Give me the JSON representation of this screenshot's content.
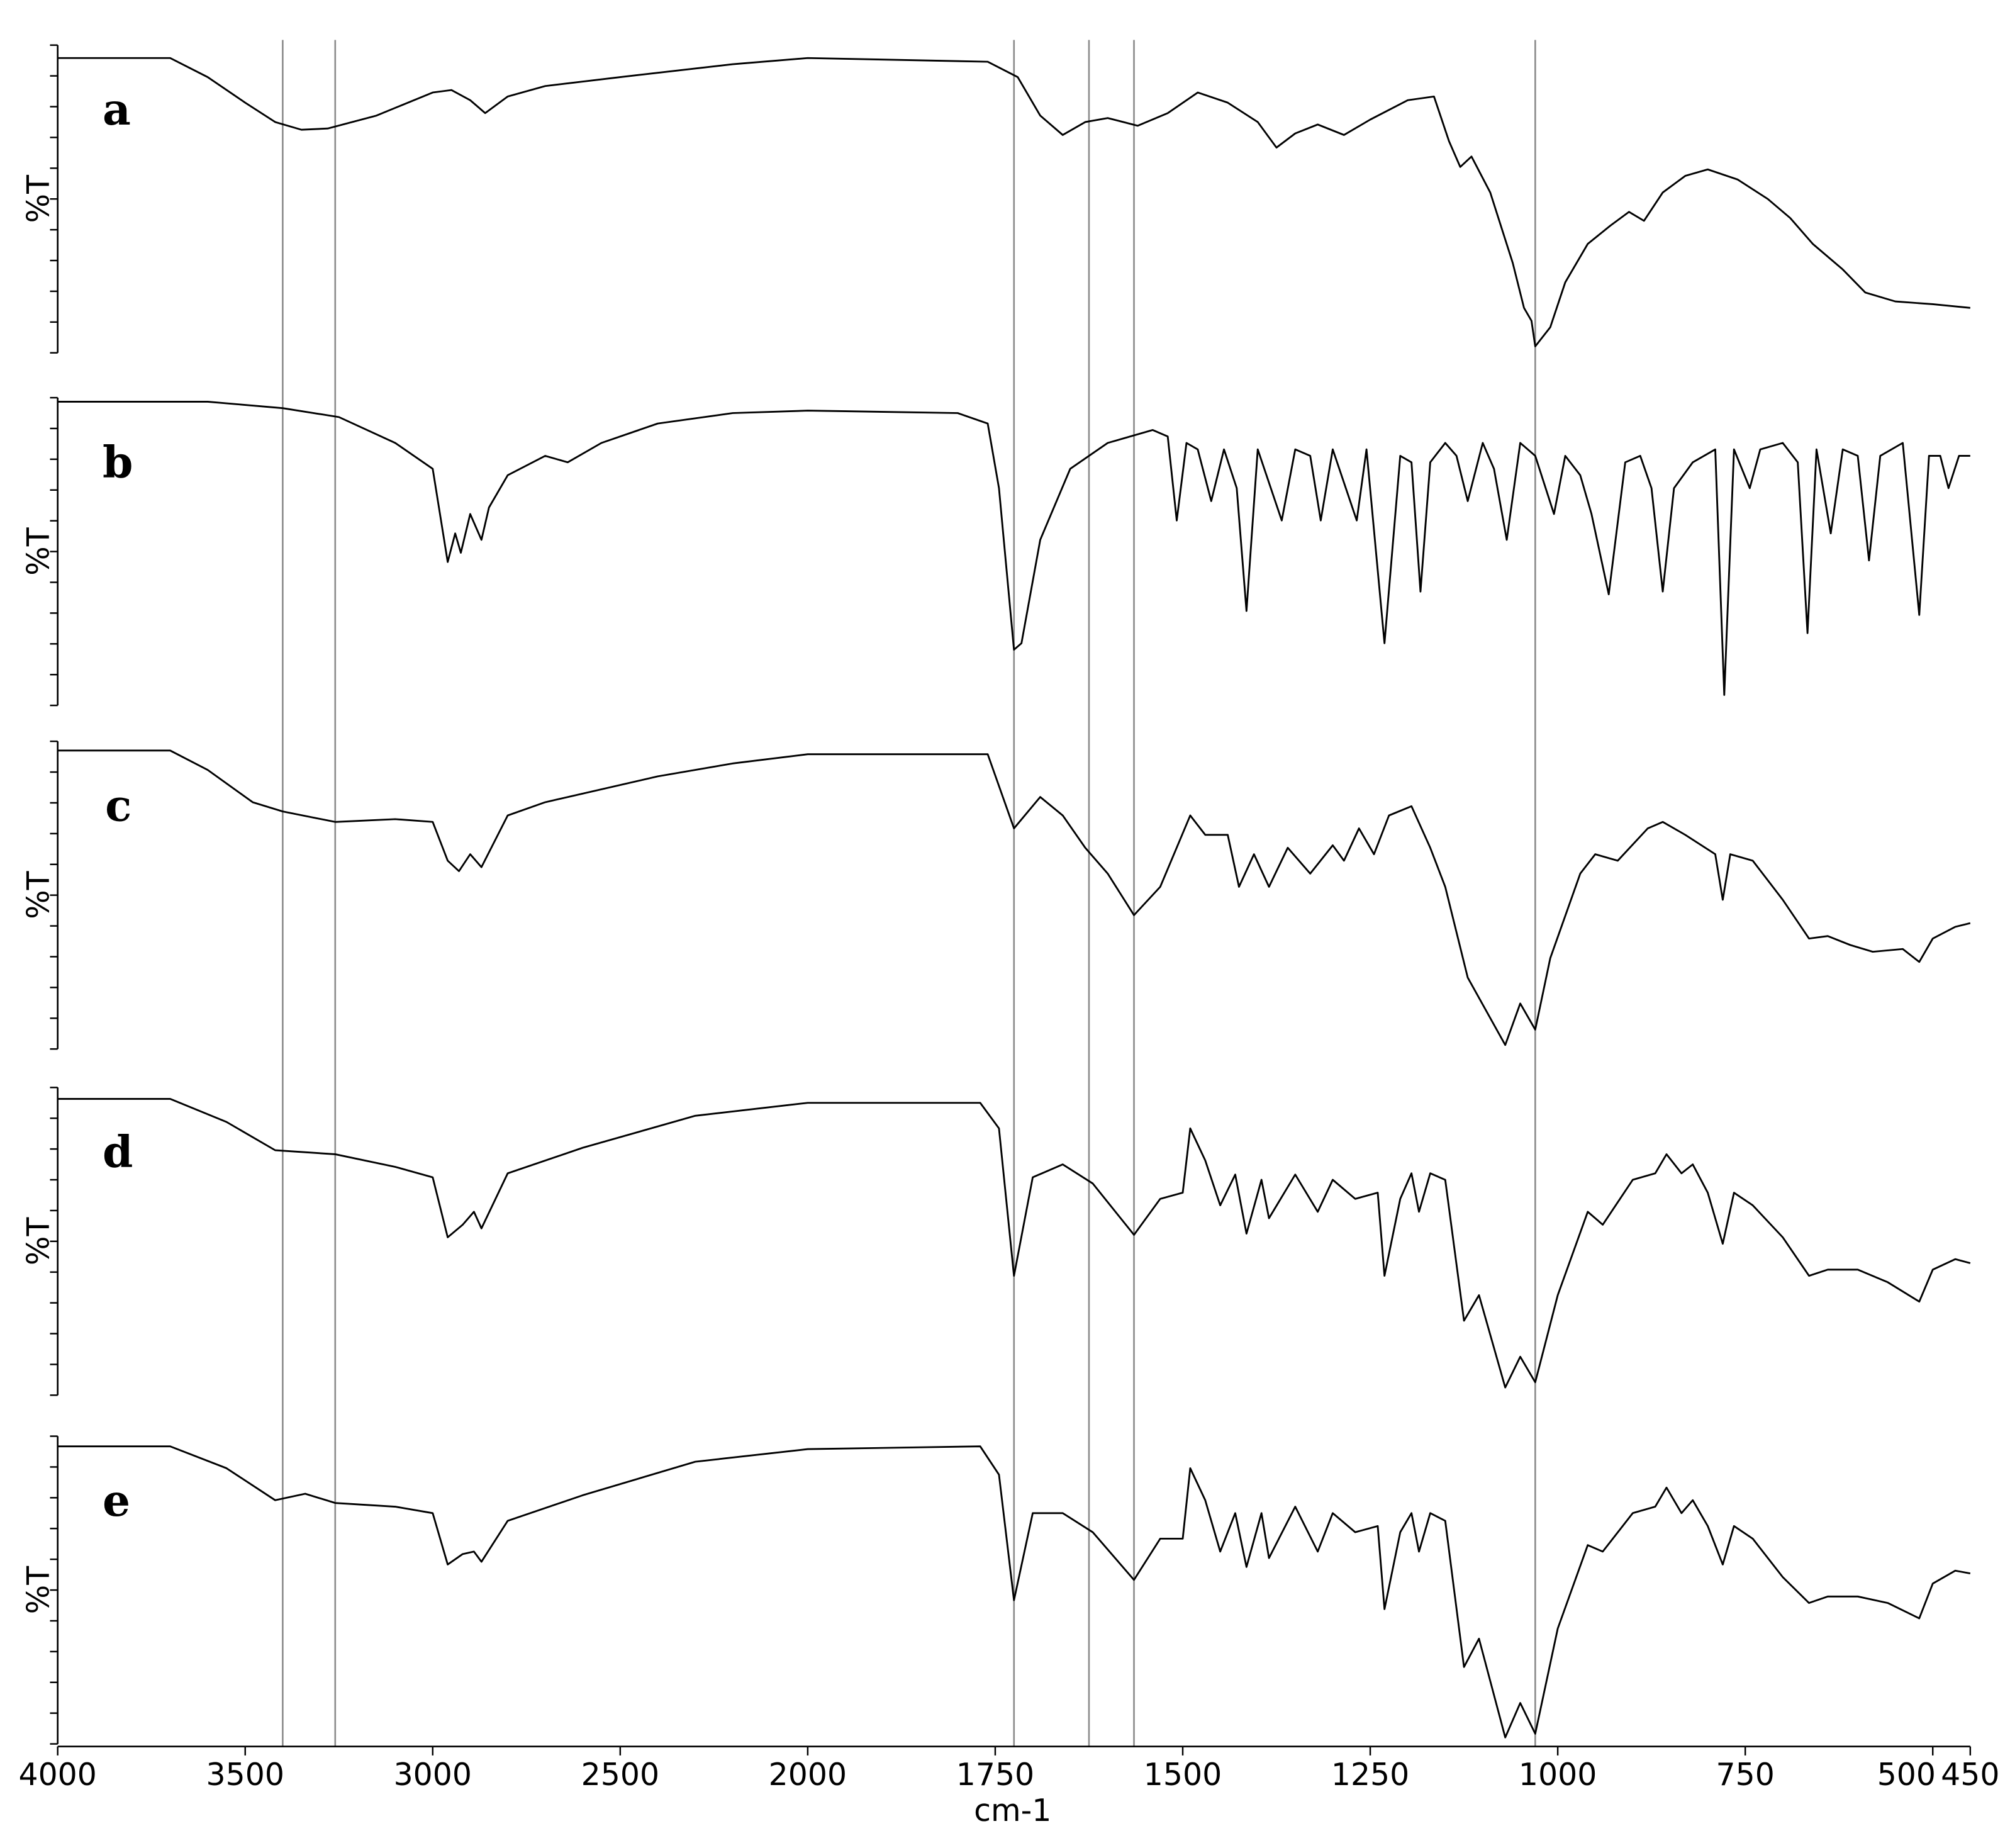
{
  "reference_lines": {
    "x": [
      3400,
      3260,
      1725,
      1625,
      1565,
      1030
    ],
    "color": "#8c8c8c"
  },
  "chart_data": [
    {
      "type": "line",
      "title": "a",
      "ylabel": "%T",
      "color": "#000000",
      "xlim": [
        4000,
        450
      ],
      "xscale": {
        "break": 2000,
        "ratio": 2
      },
      "ylim": [
        0,
        100
      ],
      "yticks": [
        0,
        10,
        20,
        30,
        40,
        50,
        60,
        70,
        80,
        90,
        100
      ],
      "x": [
        4000,
        3700,
        3600,
        3500,
        3420,
        3350,
        3280,
        3150,
        3000,
        2950,
        2900,
        2860,
        2800,
        2700,
        2500,
        2200,
        2000,
        1760,
        1720,
        1690,
        1660,
        1630,
        1600,
        1560,
        1520,
        1480,
        1440,
        1400,
        1375,
        1350,
        1320,
        1285,
        1250,
        1200,
        1165,
        1145,
        1130,
        1115,
        1090,
        1060,
        1045,
        1035,
        1030,
        1010,
        990,
        960,
        930,
        905,
        885,
        860,
        830,
        800,
        760,
        720,
        690,
        660,
        620,
        590,
        550,
        500,
        450
      ],
      "values": [
        95.8,
        95.8,
        89.6,
        81.3,
        75,
        72.5,
        72.9,
        77.1,
        84.6,
        85.4,
        82.1,
        77.9,
        83.3,
        86.7,
        89.6,
        93.8,
        95.8,
        94.6,
        89.6,
        77.1,
        70.8,
        75,
        76.3,
        73.8,
        77.9,
        84.6,
        81.3,
        75,
        66.7,
        71.3,
        74.2,
        70.8,
        75.8,
        82.1,
        83.3,
        68.8,
        60.4,
        63.8,
        52.1,
        29.2,
        14.6,
        10.4,
        2.1,
        8.3,
        22.9,
        35.4,
        41.3,
        45.8,
        42.9,
        52.1,
        57.5,
        59.6,
        56.3,
        50,
        43.8,
        35.4,
        27.1,
        19.6,
        16.7,
        15.8,
        14.6
      ]
    },
    {
      "type": "line",
      "title": "b",
      "ylabel": "%T",
      "color": "#000000",
      "xlim": [
        4000,
        450
      ],
      "xscale": {
        "break": 2000,
        "ratio": 2
      },
      "ylim": [
        0,
        100
      ],
      "yticks": [
        0,
        10,
        20,
        30,
        40,
        50,
        60,
        70,
        80,
        90,
        100
      ],
      "x": [
        4000,
        3600,
        3400,
        3250,
        3100,
        3000,
        2960,
        2940,
        2925,
        2900,
        2870,
        2850,
        2800,
        2700,
        2640,
        2550,
        2400,
        2200,
        2000,
        1800,
        1760,
        1745,
        1725,
        1715,
        1690,
        1650,
        1600,
        1540,
        1520,
        1508,
        1495,
        1480,
        1462,
        1445,
        1428,
        1415,
        1400,
        1368,
        1350,
        1330,
        1316,
        1300,
        1268,
        1255,
        1231,
        1210,
        1195,
        1183,
        1170,
        1150,
        1135,
        1120,
        1100,
        1085,
        1068,
        1050,
        1030,
        1005,
        990,
        970,
        955,
        932,
        910,
        890,
        875,
        860,
        845,
        820,
        790,
        778,
        765,
        744,
        730,
        700,
        680,
        667,
        655,
        636,
        620,
        600,
        585,
        570,
        540,
        518,
        505,
        490,
        479,
        465,
        450
      ],
      "values": [
        98.7,
        98.7,
        96.6,
        93.7,
        85.3,
        76.9,
        46.6,
        55.9,
        49.6,
        62.2,
        53.8,
        64.3,
        74.8,
        81.1,
        79,
        85.3,
        91.6,
        95,
        95.8,
        95,
        91.6,
        70.6,
        18.1,
        20.2,
        53.8,
        76.9,
        85.3,
        89.5,
        87.4,
        60.1,
        85.3,
        83.2,
        66.4,
        83.2,
        70.6,
        30.7,
        83.2,
        60.1,
        83.2,
        81.1,
        60.1,
        83.2,
        60.1,
        83.2,
        20.2,
        81.1,
        79,
        37,
        79,
        85.3,
        81.1,
        66.4,
        85.3,
        76.9,
        53.8,
        85.3,
        81.1,
        62.2,
        81.1,
        74.8,
        62.2,
        36.1,
        79,
        81.1,
        70.6,
        37,
        70.6,
        79,
        83.2,
        3.4,
        83.2,
        70.6,
        83.2,
        85.3,
        79,
        23.5,
        83.2,
        55.9,
        83.2,
        81.1,
        47.1,
        81.1,
        85.3,
        29.4,
        81.1,
        81.1,
        70.6,
        81.1,
        81.1
      ]
    },
    {
      "type": "line",
      "title": "c",
      "ylabel": "%T",
      "color": "#000000",
      "xlim": [
        4000,
        450
      ],
      "xscale": {
        "break": 2000,
        "ratio": 2
      },
      "ylim": [
        0,
        100
      ],
      "yticks": [
        0,
        10,
        20,
        30,
        40,
        50,
        60,
        70,
        80,
        90,
        100
      ],
      "x": [
        4000,
        3700,
        3600,
        3480,
        3400,
        3260,
        3100,
        3000,
        2960,
        2930,
        2900,
        2870,
        2800,
        2700,
        2400,
        2200,
        2000,
        1760,
        1725,
        1690,
        1660,
        1630,
        1600,
        1565,
        1530,
        1490,
        1470,
        1440,
        1425,
        1405,
        1385,
        1360,
        1330,
        1300,
        1285,
        1265,
        1245,
        1225,
        1195,
        1170,
        1150,
        1120,
        1070,
        1050,
        1030,
        1010,
        970,
        950,
        920,
        880,
        860,
        830,
        790,
        780,
        770,
        740,
        700,
        665,
        640,
        610,
        580,
        540,
        518,
        500,
        470,
        450
      ],
      "values": [
        97,
        97,
        90.7,
        80.2,
        77.2,
        73.8,
        74.7,
        73.8,
        61.2,
        57.8,
        63.3,
        59.1,
        75.9,
        80.2,
        88.6,
        92.8,
        95.8,
        95.8,
        71.7,
        81.9,
        75.9,
        65.4,
        57,
        43.5,
        52.7,
        75.9,
        69.6,
        69.6,
        52.7,
        63.3,
        52.7,
        65.4,
        57,
        66.2,
        61.2,
        71.7,
        63.3,
        75.9,
        78.9,
        65.4,
        52.7,
        23.2,
        1.3,
        14.8,
        6.3,
        29.5,
        57,
        63.3,
        61.2,
        71.7,
        73.8,
        69.6,
        63.3,
        48.5,
        63.3,
        61.2,
        48.5,
        35.9,
        36.7,
        33.8,
        31.6,
        32.5,
        28.3,
        35.9,
        39.7,
        40.9
      ]
    },
    {
      "type": "line",
      "title": "d",
      "ylabel": "%T",
      "color": "#000000",
      "xlim": [
        4000,
        450
      ],
      "xscale": {
        "break": 2000,
        "ratio": 2
      },
      "ylim": [
        0,
        100
      ],
      "yticks": [
        0,
        10,
        20,
        30,
        40,
        50,
        60,
        70,
        80,
        90,
        100
      ],
      "x": [
        4000,
        3700,
        3550,
        3420,
        3260,
        3100,
        3000,
        2960,
        2920,
        2890,
        2870,
        2800,
        2600,
        2300,
        2000,
        1770,
        1745,
        1725,
        1700,
        1660,
        1620,
        1565,
        1530,
        1500,
        1490,
        1470,
        1450,
        1430,
        1415,
        1395,
        1385,
        1350,
        1320,
        1300,
        1270,
        1240,
        1231,
        1210,
        1195,
        1185,
        1170,
        1150,
        1125,
        1105,
        1070,
        1050,
        1030,
        1000,
        960,
        940,
        900,
        870,
        855,
        835,
        820,
        800,
        780,
        765,
        740,
        700,
        665,
        640,
        600,
        560,
        518,
        500,
        470,
        450
      ],
      "values": [
        96.3,
        96.3,
        88.8,
        79.6,
        78.3,
        74.2,
        70.8,
        51.3,
        55.4,
        59.6,
        54.2,
        72.1,
        80.4,
        90.8,
        95,
        95,
        86.7,
        38.8,
        70.8,
        75,
        68.8,
        52.1,
        63.8,
        65.8,
        86.7,
        76.3,
        61.7,
        71.7,
        52.5,
        70,
        57.5,
        71.7,
        59.6,
        70,
        63.8,
        65.8,
        38.8,
        63.8,
        72.1,
        59.6,
        72.1,
        70,
        24.2,
        32.5,
        2.5,
        12.5,
        4.2,
        32.5,
        59.6,
        55.4,
        70,
        72.1,
        78.3,
        72.1,
        75,
        65.8,
        49.2,
        65.8,
        61.7,
        51.3,
        38.8,
        40.8,
        40.8,
        36.7,
        30.4,
        40.8,
        44.2,
        42.9
      ]
    },
    {
      "type": "line",
      "title": "e",
      "ylabel": "%T",
      "xlabel": "cm-1",
      "color": "#000000",
      "xlim": [
        4000,
        450
      ],
      "xscale": {
        "break": 2000,
        "ratio": 2
      },
      "ylim": [
        0,
        100
      ],
      "yticks": [
        0,
        10,
        20,
        30,
        40,
        50,
        60,
        70,
        80,
        90,
        100
      ],
      "xticks": [
        4000,
        3500,
        3000,
        2500,
        2000,
        1750,
        1500,
        1250,
        1000,
        750,
        500,
        450
      ],
      "x": [
        4000,
        3700,
        3550,
        3420,
        3340,
        3260,
        3100,
        3000,
        2960,
        2920,
        2890,
        2870,
        2800,
        2600,
        2300,
        2000,
        1770,
        1745,
        1725,
        1700,
        1660,
        1620,
        1565,
        1530,
        1500,
        1490,
        1470,
        1450,
        1430,
        1415,
        1395,
        1385,
        1350,
        1320,
        1300,
        1270,
        1240,
        1231,
        1210,
        1195,
        1185,
        1170,
        1150,
        1125,
        1105,
        1070,
        1050,
        1030,
        1000,
        960,
        940,
        900,
        870,
        855,
        835,
        820,
        800,
        780,
        765,
        740,
        700,
        665,
        640,
        600,
        560,
        518,
        500,
        470,
        450
      ],
      "values": [
        96.7,
        96.7,
        89.6,
        79.2,
        81.3,
        78.3,
        77.1,
        75,
        58.3,
        61.7,
        62.5,
        59.2,
        72.5,
        80.8,
        91.7,
        95.8,
        96.7,
        87.5,
        46.7,
        75,
        75,
        68.8,
        53.3,
        66.7,
        66.7,
        89.6,
        79.2,
        62.5,
        75,
        57.5,
        75,
        60.4,
        77.1,
        62.5,
        75,
        68.8,
        70.8,
        43.8,
        68.8,
        75,
        62.5,
        75,
        72.5,
        25,
        34.2,
        2.1,
        13.3,
        3.3,
        37.5,
        64.6,
        62.5,
        75,
        77.1,
        83.3,
        75,
        79.2,
        70.8,
        58.3,
        70.8,
        66.7,
        54.2,
        45.8,
        47.9,
        47.9,
        45.8,
        40.8,
        52.1,
        56.3,
        55.4
      ]
    }
  ]
}
